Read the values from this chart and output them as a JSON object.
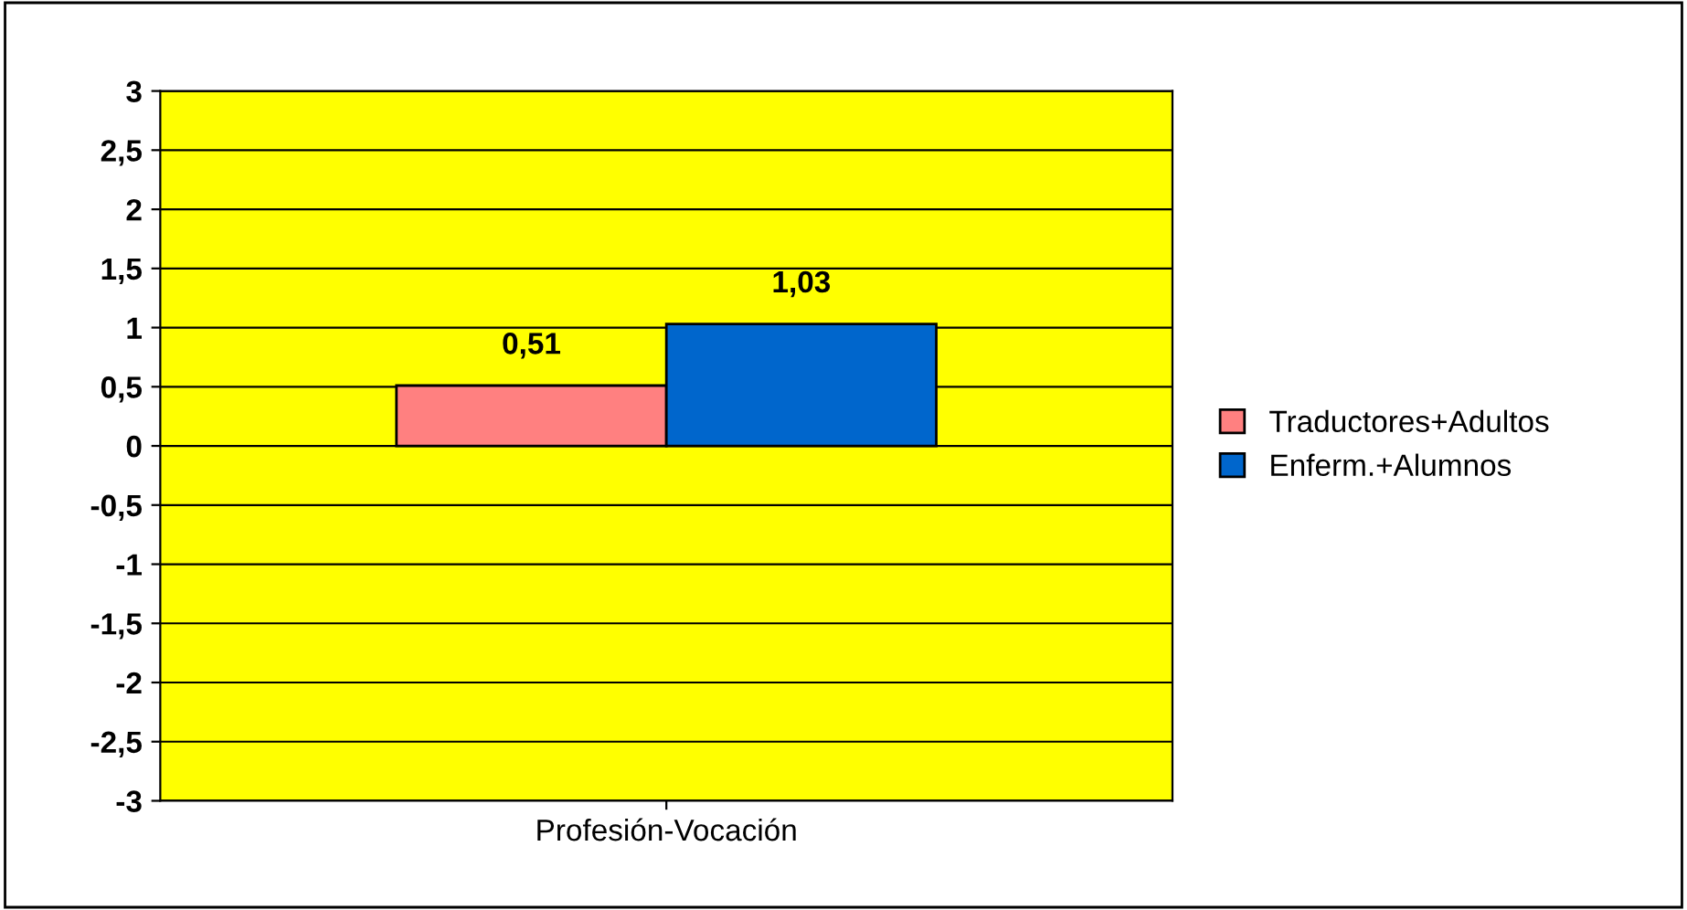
{
  "chart_data": {
    "type": "bar",
    "categories": [
      "Profesión-Vocación"
    ],
    "series": [
      {
        "name": "Traductores+Adultos",
        "color": "#ff8080",
        "values": [
          0.51
        ],
        "value_labels": [
          "0,51"
        ]
      },
      {
        "name": "Enferm.+Alumnos",
        "color": "#0066cc",
        "values": [
          1.03
        ],
        "value_labels": [
          "1,03"
        ]
      }
    ],
    "ylim": [
      -3,
      3
    ],
    "yticks": [
      {
        "value": -3,
        "label": "-3"
      },
      {
        "value": -2.5,
        "label": "-2,5"
      },
      {
        "value": -2,
        "label": "-2"
      },
      {
        "value": -1.5,
        "label": "-1,5"
      },
      {
        "value": -1,
        "label": "-1"
      },
      {
        "value": -0.5,
        "label": "-0,5"
      },
      {
        "value": 0,
        "label": "0"
      },
      {
        "value": 0.5,
        "label": "0,5"
      },
      {
        "value": 1,
        "label": "1"
      },
      {
        "value": 1.5,
        "label": "1,5"
      },
      {
        "value": 2,
        "label": "2"
      },
      {
        "value": 2.5,
        "label": "2,5"
      },
      {
        "value": 3,
        "label": "3"
      }
    ],
    "grid": "y",
    "legend": "right"
  }
}
